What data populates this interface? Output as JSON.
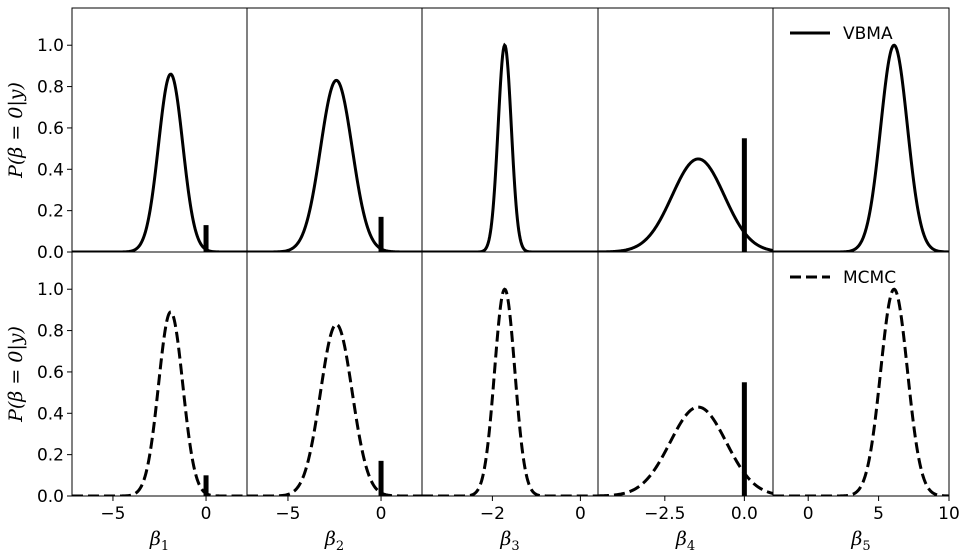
{
  "chart_data": {
    "type": "line",
    "ylabel": "P(β = 0|y)",
    "ylim": [
      0,
      1.18
    ],
    "yticks": [
      "0.0",
      "0.2",
      "0.4",
      "0.6",
      "0.8",
      "1.0"
    ],
    "grid": false,
    "rows": [
      {
        "name": "VBMA",
        "line_style": "solid",
        "legend_position": "top-right"
      },
      {
        "name": "MCMC",
        "line_style": "dashed",
        "legend_position": "top-right"
      }
    ],
    "panels": [
      {
        "xlabel": "β",
        "xlabel_sub": "1",
        "xlim": [
          -7.2,
          2.2
        ],
        "xticks": [
          {
            "value": -5,
            "label": "−5"
          },
          {
            "value": 0,
            "label": "0"
          }
        ],
        "density": [
          {
            "mean": -1.9,
            "sd": 0.65,
            "peak": 0.86
          },
          {
            "mean": -1.9,
            "sd": 0.65,
            "peak": 0.89
          }
        ],
        "spike": [
          {
            "at": 0,
            "height": 0.13
          },
          {
            "at": 0,
            "height": 0.1
          }
        ]
      },
      {
        "xlabel": "β",
        "xlabel_sub": "2",
        "xlim": [
          -7.2,
          2.2
        ],
        "xticks": [
          {
            "value": -5,
            "label": "−5"
          },
          {
            "value": 0,
            "label": "0"
          }
        ],
        "density": [
          {
            "mean": -2.4,
            "sd": 0.85,
            "peak": 0.83
          },
          {
            "mean": -2.4,
            "sd": 0.85,
            "peak": 0.83
          }
        ],
        "spike": [
          {
            "at": 0,
            "height": 0.17
          },
          {
            "at": 0,
            "height": 0.17
          }
        ]
      },
      {
        "xlabel": "β",
        "xlabel_sub": "3",
        "xlim": [
          -3.6,
          0.4
        ],
        "xticks": [
          {
            "value": -2,
            "label": "−2"
          },
          {
            "value": 0,
            "label": "0"
          }
        ],
        "density": [
          {
            "mean": -1.72,
            "sd": 0.15,
            "peak": 1.0
          },
          {
            "mean": -1.72,
            "sd": 0.23,
            "peak": 1.0
          }
        ],
        "spike": [
          {
            "at": null,
            "height": 0
          },
          {
            "at": null,
            "height": 0
          }
        ]
      },
      {
        "xlabel": "β",
        "xlabel_sub": "4",
        "xlim": [
          -4.6,
          0.9
        ],
        "xticks": [
          {
            "value": -2.5,
            "label": "−2.5"
          },
          {
            "value": 0,
            "label": "0.0"
          }
        ],
        "density": [
          {
            "mean": -1.45,
            "sd": 0.82,
            "peak": 0.45
          },
          {
            "mean": -1.45,
            "sd": 0.88,
            "peak": 0.43
          }
        ],
        "spike": [
          {
            "at": 0,
            "height": 0.55
          },
          {
            "at": 0,
            "height": 0.55
          }
        ]
      },
      {
        "xlabel": "β",
        "xlabel_sub": "5",
        "xlim": [
          -2.5,
          10
        ],
        "xticks": [
          {
            "value": 0,
            "label": "0"
          },
          {
            "value": 5,
            "label": "5"
          },
          {
            "value": 10,
            "label": "10"
          }
        ],
        "density": [
          {
            "mean": 6.1,
            "sd": 0.95,
            "peak": 1.0
          },
          {
            "mean": 6.1,
            "sd": 0.95,
            "peak": 1.0
          }
        ],
        "spike": [
          {
            "at": null,
            "height": 0
          },
          {
            "at": null,
            "height": 0
          }
        ]
      }
    ]
  }
}
